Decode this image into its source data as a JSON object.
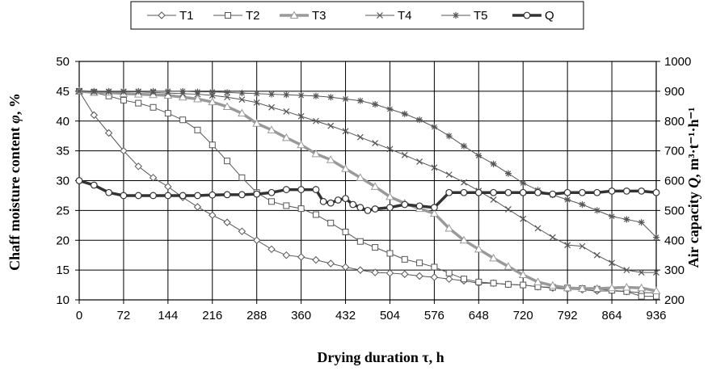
{
  "chart_data": {
    "type": "line",
    "xlabel": "Drying duration τ, h",
    "ylabel_left_main": "Chaff moisture content ",
    "ylabel_left_sym": "φ",
    "ylabel_left_unit": ", %",
    "ylabel_right_main": "Air capacity ",
    "ylabel_right_sym": "Q",
    "ylabel_right_unit": ", m³·t⁻¹·h⁻¹",
    "xlim": [
      0,
      936
    ],
    "xticks": [
      "0",
      "72",
      "144",
      "216",
      "288",
      "360",
      "432",
      "504",
      "576",
      "648",
      "720",
      "792",
      "864",
      "936"
    ],
    "ylim_left": [
      10,
      50
    ],
    "yticks_left": [
      "10",
      "15",
      "20",
      "25",
      "30",
      "35",
      "40",
      "45",
      "50"
    ],
    "ylim_right": [
      200,
      1000
    ],
    "yticks_right": [
      "200",
      "300",
      "400",
      "500",
      "600",
      "700",
      "800",
      "900",
      "1000"
    ],
    "grid": true,
    "legend_position": "top",
    "series": [
      {
        "name": "T1",
        "marker": "diamond",
        "color": "#555555",
        "axis": "left",
        "x": [
          0,
          24,
          48,
          72,
          96,
          120,
          144,
          168,
          192,
          216,
          240,
          264,
          288,
          312,
          336,
          360,
          384,
          408,
          432,
          456,
          480,
          504,
          528,
          552,
          576,
          600,
          624,
          648,
          672,
          696,
          720,
          744,
          768,
          792,
          816,
          840,
          864,
          888,
          912,
          936
        ],
        "y": [
          45,
          41,
          38,
          35,
          32.4,
          30.5,
          29,
          27.2,
          25.6,
          24.2,
          23,
          21.5,
          20,
          18.5,
          17.5,
          17.2,
          16.7,
          16.1,
          15.5,
          15,
          14.6,
          14.5,
          14.3,
          14,
          13.8,
          13.5,
          13.2,
          12.8,
          12.8,
          12.6,
          12.5,
          12.2,
          12,
          11.8,
          11.7,
          11.5,
          11.5,
          11.4,
          11.2,
          11.2
        ]
      },
      {
        "name": "T2",
        "marker": "square",
        "color": "#555555",
        "axis": "left",
        "x": [
          0,
          24,
          48,
          72,
          96,
          120,
          144,
          168,
          192,
          216,
          240,
          264,
          288,
          312,
          336,
          360,
          384,
          408,
          432,
          456,
          480,
          504,
          528,
          552,
          576,
          600,
          624,
          648,
          672,
          696,
          720,
          744,
          768,
          792,
          816,
          840,
          864,
          888,
          912,
          936
        ],
        "y": [
          45,
          44.8,
          44.2,
          43.5,
          43,
          42.3,
          41.3,
          40.2,
          38.5,
          36,
          33.3,
          30.5,
          28,
          26.5,
          25.8,
          25.3,
          24.3,
          22.9,
          21.4,
          19.8,
          18.8,
          17.8,
          16.8,
          16.2,
          15.5,
          14.5,
          13.5,
          13,
          12.8,
          12.6,
          12.5,
          12.2,
          12.1,
          12,
          11.9,
          11.8,
          11.6,
          11.4,
          10.6,
          10.6
        ]
      },
      {
        "name": "T3",
        "marker": "triangle",
        "color": "#999999",
        "axis": "left",
        "x": [
          0,
          24,
          48,
          72,
          96,
          120,
          144,
          168,
          192,
          216,
          240,
          264,
          288,
          312,
          336,
          360,
          384,
          408,
          432,
          456,
          480,
          504,
          528,
          552,
          576,
          600,
          624,
          648,
          672,
          696,
          720,
          744,
          768,
          792,
          816,
          840,
          864,
          888,
          912,
          936
        ],
        "y": [
          45,
          44.8,
          44.8,
          44.6,
          44.5,
          44.4,
          44.3,
          44,
          43.7,
          43.2,
          42.4,
          41.3,
          39.6,
          38.5,
          37.2,
          36,
          34.5,
          33.5,
          32,
          30.5,
          29,
          27.3,
          26.2,
          25.3,
          24.5,
          22,
          20,
          18.5,
          17,
          15.6,
          14.2,
          13,
          12.4,
          12,
          11.9,
          11.9,
          12,
          12.1,
          12,
          11.5
        ]
      },
      {
        "name": "T4",
        "marker": "x",
        "color": "#555555",
        "axis": "left",
        "x": [
          0,
          24,
          48,
          72,
          96,
          120,
          144,
          168,
          192,
          216,
          240,
          264,
          288,
          312,
          336,
          360,
          384,
          408,
          432,
          456,
          480,
          504,
          528,
          552,
          576,
          600,
          624,
          648,
          672,
          696,
          720,
          744,
          768,
          792,
          816,
          840,
          864,
          888,
          912,
          936
        ],
        "y": [
          45,
          44.9,
          44.9,
          44.9,
          44.9,
          44.8,
          44.7,
          44.6,
          44.5,
          44.3,
          44,
          43.6,
          43.1,
          42.3,
          41.6,
          40.8,
          40,
          39.2,
          38.3,
          37.3,
          36.3,
          35.3,
          34.3,
          33.2,
          32.2,
          31,
          29.7,
          28.3,
          26.8,
          25.2,
          23.6,
          22,
          20.5,
          19.2,
          19,
          17.5,
          16.2,
          15,
          14.6,
          14.6
        ]
      },
      {
        "name": "T5",
        "marker": "star",
        "color": "#555555",
        "axis": "left",
        "x": [
          0,
          24,
          48,
          72,
          96,
          120,
          144,
          168,
          192,
          216,
          240,
          264,
          288,
          312,
          336,
          360,
          384,
          408,
          432,
          456,
          480,
          504,
          528,
          552,
          576,
          600,
          624,
          648,
          672,
          696,
          720,
          744,
          768,
          792,
          816,
          840,
          864,
          888,
          912,
          936
        ],
        "y": [
          45,
          45,
          45,
          45,
          45,
          45,
          45,
          45,
          44.9,
          44.9,
          44.8,
          44.7,
          44.6,
          44.5,
          44.4,
          44.3,
          44.2,
          44,
          43.7,
          43.4,
          42.8,
          42,
          41.2,
          40.2,
          39,
          37.5,
          35.8,
          34.2,
          32.8,
          31.2,
          29.6,
          28.4,
          27.6,
          26.8,
          26,
          25,
          24,
          23.5,
          23,
          20.5
        ]
      },
      {
        "name": "Q",
        "marker": "circle",
        "color": "#333333",
        "axis": "right",
        "x": [
          0,
          24,
          48,
          72,
          96,
          120,
          144,
          168,
          192,
          216,
          240,
          264,
          288,
          312,
          336,
          360,
          384,
          396,
          408,
          420,
          432,
          444,
          456,
          468,
          480,
          504,
          528,
          552,
          576,
          600,
          624,
          648,
          672,
          696,
          720,
          744,
          768,
          792,
          816,
          840,
          864,
          888,
          912,
          936
        ],
        "y": [
          600,
          585,
          560,
          550,
          550,
          550,
          550,
          550,
          550,
          552,
          553,
          553,
          555,
          560,
          570,
          570,
          570,
          530,
          525,
          535,
          540,
          520,
          510,
          500,
          505,
          510,
          520,
          515,
          510,
          560,
          560,
          560,
          560,
          560,
          560,
          560,
          555,
          560,
          560,
          560,
          565,
          565,
          565,
          560
        ]
      }
    ]
  }
}
